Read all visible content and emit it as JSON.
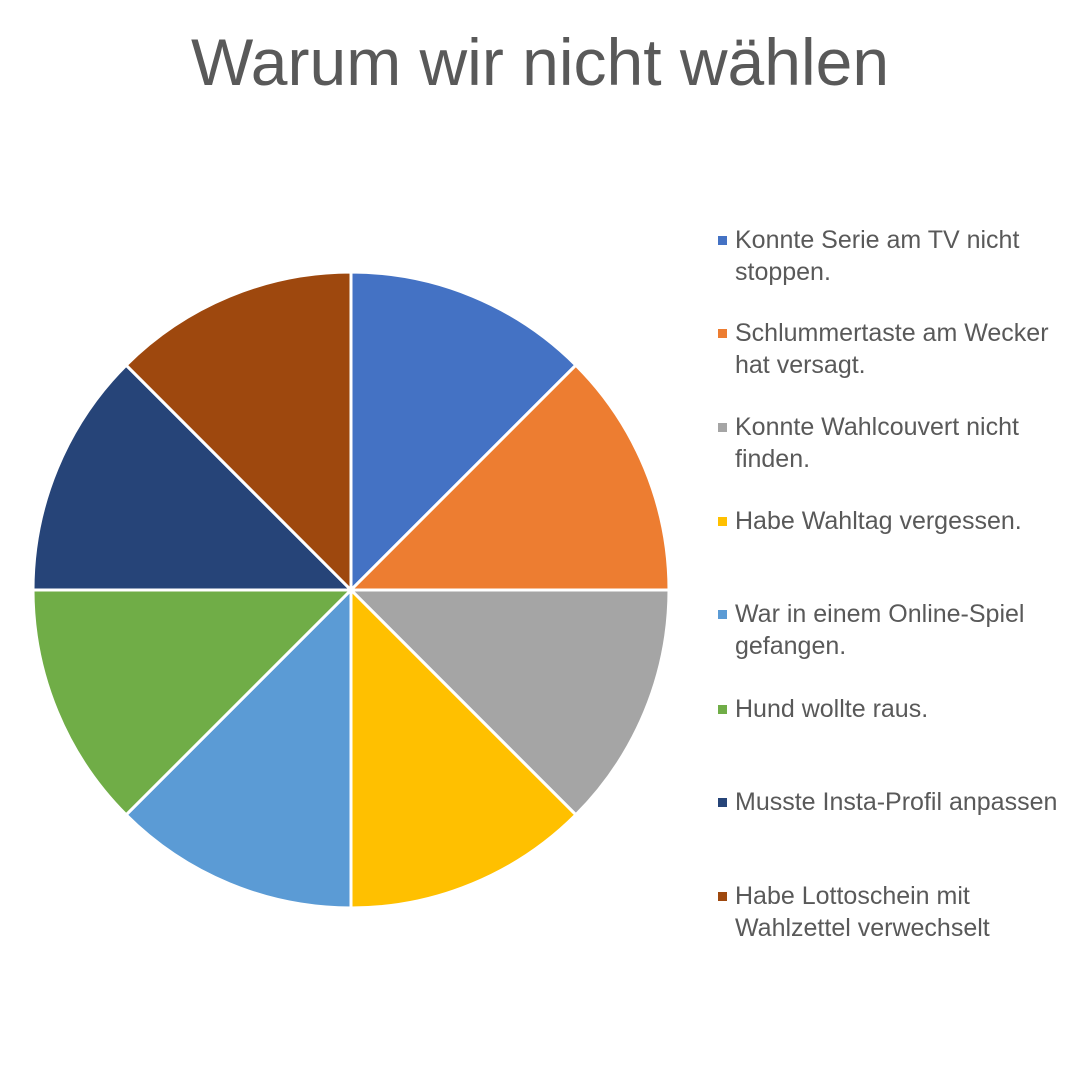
{
  "chart_data": {
    "type": "pie",
    "title": "Warum wir nicht wählen",
    "legend_position": "right",
    "slices": [
      {
        "label": "Konnte Serie am TV nicht stoppen.",
        "value": 12.5,
        "color": "#4472C4"
      },
      {
        "label": "Schlummertaste am Wecker hat versagt.",
        "value": 12.5,
        "color": "#ED7D31"
      },
      {
        "label": "Konnte Wahlcouvert nicht finden.",
        "value": 12.5,
        "color": "#A5A5A5"
      },
      {
        "label": "Habe Wahltag vergessen.",
        "value": 12.5,
        "color": "#FFC000"
      },
      {
        "label": "War in einem Online-Spiel gefangen.",
        "value": 12.5,
        "color": "#5B9BD5"
      },
      {
        "label": "Hund wollte raus.",
        "value": 12.5,
        "color": "#70AD47"
      },
      {
        "label": "Musste Insta-Profil anpassen",
        "value": 12.5,
        "color": "#264478"
      },
      {
        "label": "Habe Lottoschein mit Wahlzettel verwechselt",
        "value": 12.5,
        "color": "#9E480E"
      }
    ]
  }
}
